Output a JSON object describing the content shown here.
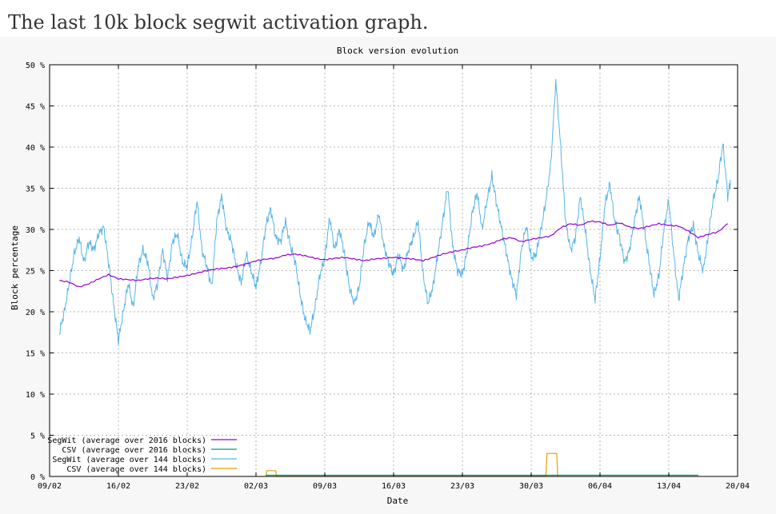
{
  "page": {
    "heading": "The last 10k block segwit activation graph."
  },
  "colors": {
    "segwit_2016": "#9400d3",
    "csv_2016": "#009e73",
    "segwit_144": "#56b4e9",
    "csv_144": "#e69f00",
    "grid": "#a0a0a0",
    "axis": "#000000"
  },
  "chart_data": {
    "type": "line",
    "title": "Block version evolution",
    "xlabel": "Date",
    "ylabel": "Block percentage",
    "ylim": [
      0,
      50
    ],
    "xlim": [
      "2017-02-09",
      "2017-04-20"
    ],
    "x_tick_labels": [
      "09/02",
      "16/02",
      "23/02",
      "02/03",
      "09/03",
      "16/03",
      "23/03",
      "30/03",
      "06/04",
      "13/04",
      "20/04"
    ],
    "y_tick_labels": [
      "0 %",
      "5 %",
      "10 %",
      "15 %",
      "20 %",
      "25 %",
      "30 %",
      "35 %",
      "40 %",
      "45 %",
      "50 %"
    ],
    "y_tick_values": [
      0,
      5,
      10,
      15,
      20,
      25,
      30,
      35,
      40,
      45,
      50
    ],
    "grid": true,
    "legend_position": "bottom-left",
    "series": [
      {
        "name": "SegWit (average over 2016 blocks)",
        "color": "#9400d3",
        "points": [
          [
            "02-10",
            23.8
          ],
          [
            "02-11",
            23.6
          ],
          [
            "02-12",
            23.0
          ],
          [
            "02-13",
            23.4
          ],
          [
            "02-14",
            24.0
          ],
          [
            "02-15",
            24.5
          ],
          [
            "02-16",
            24.0
          ],
          [
            "02-17",
            23.9
          ],
          [
            "02-18",
            23.8
          ],
          [
            "02-19",
            24.0
          ],
          [
            "02-20",
            24.1
          ],
          [
            "02-21",
            24.0
          ],
          [
            "02-22",
            24.2
          ],
          [
            "02-23",
            24.4
          ],
          [
            "02-24",
            24.7
          ],
          [
            "02-25",
            25.0
          ],
          [
            "02-26",
            25.2
          ],
          [
            "02-27",
            25.3
          ],
          [
            "02-28",
            25.5
          ],
          [
            "03-01",
            25.8
          ],
          [
            "03-02",
            26.2
          ],
          [
            "03-03",
            26.4
          ],
          [
            "03-04",
            26.5
          ],
          [
            "03-05",
            26.9
          ],
          [
            "03-06",
            27.0
          ],
          [
            "03-07",
            26.8
          ],
          [
            "03-08",
            26.5
          ],
          [
            "03-09",
            26.3
          ],
          [
            "03-10",
            26.5
          ],
          [
            "03-11",
            26.6
          ],
          [
            "03-12",
            26.4
          ],
          [
            "03-13",
            26.2
          ],
          [
            "03-14",
            26.4
          ],
          [
            "03-15",
            26.5
          ],
          [
            "03-16",
            26.6
          ],
          [
            "03-17",
            26.5
          ],
          [
            "03-18",
            26.4
          ],
          [
            "03-19",
            26.2
          ],
          [
            "03-20",
            26.6
          ],
          [
            "03-21",
            27.0
          ],
          [
            "03-22",
            27.3
          ],
          [
            "03-23",
            27.5
          ],
          [
            "03-24",
            27.8
          ],
          [
            "03-25",
            28.0
          ],
          [
            "03-26",
            28.3
          ],
          [
            "03-27",
            28.8
          ],
          [
            "03-28",
            29.0
          ],
          [
            "03-29",
            28.5
          ],
          [
            "03-30",
            28.8
          ],
          [
            "03-31",
            29.0
          ],
          [
            "04-01",
            29.2
          ],
          [
            "04-02",
            30.2
          ],
          [
            "04-03",
            30.7
          ],
          [
            "04-04",
            30.5
          ],
          [
            "04-05",
            31.0
          ],
          [
            "04-06",
            30.9
          ],
          [
            "04-07",
            30.5
          ],
          [
            "04-08",
            30.8
          ],
          [
            "04-09",
            30.3
          ],
          [
            "04-10",
            30.1
          ],
          [
            "04-11",
            30.4
          ],
          [
            "04-12",
            30.7
          ],
          [
            "04-13",
            30.5
          ],
          [
            "04-14",
            30.4
          ],
          [
            "04-15",
            29.8
          ],
          [
            "04-16",
            29.0
          ],
          [
            "04-17",
            29.4
          ],
          [
            "04-18",
            29.7
          ],
          [
            "04-19",
            30.7
          ]
        ]
      },
      {
        "name": "CSV (average over 2016 blocks)",
        "color": "#009e73",
        "points": [
          [
            "03-03",
            0.15
          ],
          [
            "03-16",
            0.15
          ],
          [
            "04-02",
            0.15
          ],
          [
            "04-16",
            0.15
          ]
        ]
      },
      {
        "name": "SegWit (average over 144 blocks)",
        "color": "#56b4e9",
        "points": [
          [
            "02-10",
            17.5
          ],
          [
            "02-10.5",
            20.0
          ],
          [
            "02-11",
            23.5
          ],
          [
            "02-11.5",
            27.0
          ],
          [
            "02-12",
            29.0
          ],
          [
            "02-12.5",
            26.0
          ],
          [
            "02-13",
            28.5
          ],
          [
            "02-13.5",
            27.5
          ],
          [
            "02-14",
            29.5
          ],
          [
            "02-14.5",
            30.3
          ],
          [
            "02-15",
            26.0
          ],
          [
            "02-15.5",
            21.0
          ],
          [
            "02-16",
            16.5
          ],
          [
            "02-16.5",
            20.0
          ],
          [
            "02-17",
            23.5
          ],
          [
            "02-17.5",
            20.5
          ],
          [
            "02-18",
            25.5
          ],
          [
            "02-18.5",
            27.5
          ],
          [
            "02-19",
            26.0
          ],
          [
            "02-19.5",
            21.5
          ],
          [
            "02-20",
            23.5
          ],
          [
            "02-20.5",
            27.5
          ],
          [
            "02-21",
            24.0
          ],
          [
            "02-21.5",
            28.5
          ],
          [
            "02-22",
            29.5
          ],
          [
            "02-22.5",
            26.0
          ],
          [
            "02-23",
            25.5
          ],
          [
            "02-23.5",
            29.0
          ],
          [
            "02-24",
            33.5
          ],
          [
            "02-24.5",
            27.5
          ],
          [
            "02-25",
            25.5
          ],
          [
            "02-25.5",
            23.0
          ],
          [
            "02-26",
            31.0
          ],
          [
            "02-26.5",
            34.0
          ],
          [
            "02-27",
            30.0
          ],
          [
            "02-27.5",
            28.5
          ],
          [
            "02-28",
            25.5
          ],
          [
            "02-28.5",
            23.5
          ],
          [
            "03-01",
            27.0
          ],
          [
            "03-01.5",
            25.0
          ],
          [
            "03-02",
            23.0
          ],
          [
            "03-02.5",
            26.0
          ],
          [
            "03-03",
            30.5
          ],
          [
            "03-03.5",
            32.5
          ],
          [
            "03-04",
            29.0
          ],
          [
            "03-04.5",
            28.5
          ],
          [
            "03-05",
            31.0
          ],
          [
            "03-05.5",
            28.0
          ],
          [
            "03-06",
            26.0
          ],
          [
            "03-06.5",
            22.0
          ],
          [
            "03-07",
            19.0
          ],
          [
            "03-07.5",
            17.7
          ],
          [
            "03-08",
            20.5
          ],
          [
            "03-08.5",
            24.5
          ],
          [
            "03-09",
            26.5
          ],
          [
            "03-09.5",
            31.5
          ],
          [
            "03-10",
            27.5
          ],
          [
            "03-10.5",
            30.0
          ],
          [
            "03-11",
            27.0
          ],
          [
            "03-11.5",
            23.0
          ],
          [
            "03-12",
            21.0
          ],
          [
            "03-12.5",
            23.0
          ],
          [
            "03-13",
            28.0
          ],
          [
            "03-13.5",
            31.0
          ],
          [
            "03-14",
            29.0
          ],
          [
            "03-14.5",
            32.0
          ],
          [
            "03-15",
            28.0
          ],
          [
            "03-15.5",
            26.0
          ],
          [
            "03-16",
            24.5
          ],
          [
            "03-16.5",
            27.0
          ],
          [
            "03-17",
            25.0
          ],
          [
            "03-17.5",
            27.5
          ],
          [
            "03-18",
            29.0
          ],
          [
            "03-18.5",
            31.0
          ],
          [
            "03-19",
            24.5
          ],
          [
            "03-19.5",
            21.0
          ],
          [
            "03-20",
            23.0
          ],
          [
            "03-20.5",
            27.0
          ],
          [
            "03-21",
            31.0
          ],
          [
            "03-21.5",
            35.2
          ],
          [
            "03-22",
            28.0
          ],
          [
            "03-22.5",
            25.0
          ],
          [
            "03-23",
            24.5
          ],
          [
            "03-23.5",
            27.5
          ],
          [
            "03-24",
            32.0
          ],
          [
            "03-24.5",
            34.5
          ],
          [
            "03-25",
            30.0
          ],
          [
            "03-25.5",
            33.5
          ],
          [
            "03-26",
            36.5
          ],
          [
            "03-26.5",
            33.0
          ],
          [
            "03-27",
            30.0
          ],
          [
            "03-27.5",
            27.0
          ],
          [
            "03-28",
            24.0
          ],
          [
            "03-28.5",
            22.0
          ],
          [
            "03-29",
            27.5
          ],
          [
            "03-29.5",
            30.5
          ],
          [
            "03-30",
            26.5
          ],
          [
            "03-30.5",
            27.0
          ],
          [
            "03-31",
            30.0
          ],
          [
            "03-31.5",
            33.5
          ],
          [
            "04-01",
            38.0
          ],
          [
            "04-01.5",
            48.0
          ],
          [
            "04-02",
            40.0
          ],
          [
            "04-02.5",
            31.0
          ],
          [
            "04-03",
            27.5
          ],
          [
            "04-03.5",
            29.0
          ],
          [
            "04-04",
            34.0
          ],
          [
            "04-04.5",
            30.0
          ],
          [
            "04-05",
            25.0
          ],
          [
            "04-05.5",
            21.5
          ],
          [
            "04-06",
            26.5
          ],
          [
            "04-06.5",
            33.0
          ],
          [
            "04-07",
            35.5
          ],
          [
            "04-07.5",
            31.0
          ],
          [
            "04-08",
            29.0
          ],
          [
            "04-08.5",
            26.0
          ],
          [
            "04-09",
            27.5
          ],
          [
            "04-09.5",
            31.0
          ],
          [
            "04-10",
            34.0
          ],
          [
            "04-10.5",
            30.0
          ],
          [
            "04-11",
            26.0
          ],
          [
            "04-11.5",
            22.0
          ],
          [
            "04-12",
            24.5
          ],
          [
            "04-12.5",
            30.0
          ],
          [
            "04-13",
            33.5
          ],
          [
            "04-13.5",
            27.0
          ],
          [
            "04-14",
            21.5
          ],
          [
            "04-14.5",
            25.5
          ],
          [
            "04-15",
            29.0
          ],
          [
            "04-15.5",
            30.5
          ],
          [
            "04-16",
            27.0
          ],
          [
            "04-16.5",
            25.0
          ],
          [
            "04-17",
            29.0
          ],
          [
            "04-17.5",
            33.5
          ],
          [
            "04-18",
            36.0
          ],
          [
            "04-18.5",
            40.5
          ],
          [
            "04-19",
            34.0
          ],
          [
            "04-19.3",
            36.0
          ]
        ]
      },
      {
        "name": "CSV (average over 144 blocks)",
        "color": "#e69f00",
        "points": [
          [
            "03-03",
            0
          ],
          [
            "03-03.1",
            0.7
          ],
          [
            "03-04",
            0.7
          ],
          [
            "03-04.1",
            0
          ],
          [
            "03-31.5",
            0
          ],
          [
            "03-31.6",
            2.8
          ],
          [
            "04-01.6",
            2.8
          ],
          [
            "04-01.7",
            0
          ]
        ]
      }
    ]
  }
}
